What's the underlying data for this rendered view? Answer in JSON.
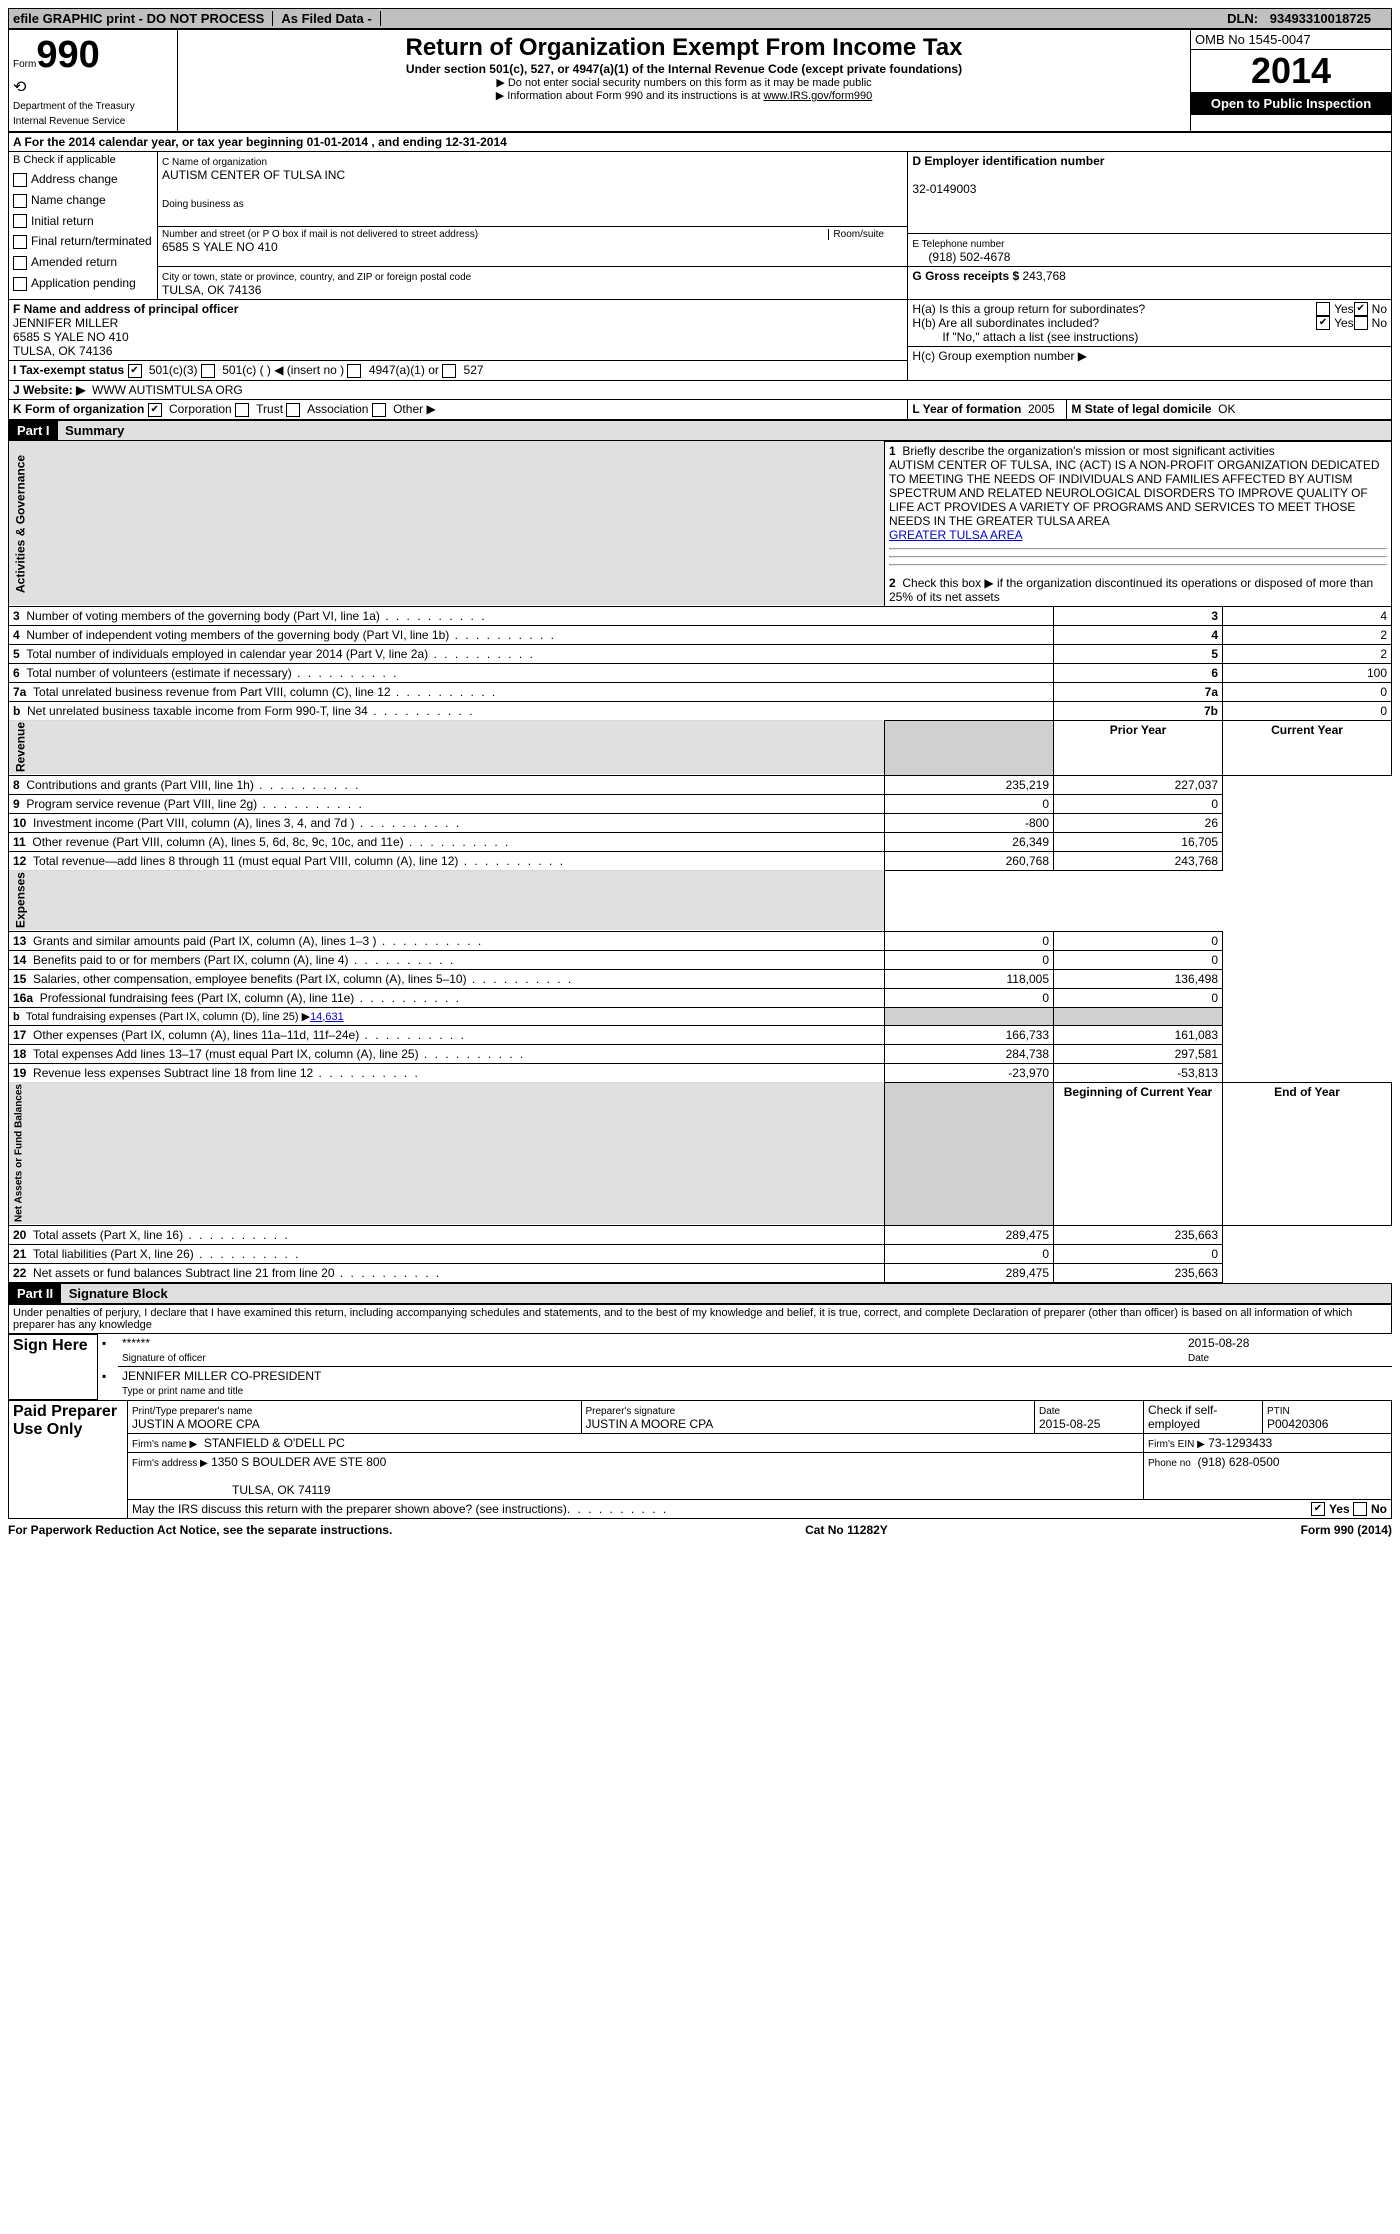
{
  "top_bar": {
    "efile": "efile GRAPHIC print - DO NOT PROCESS",
    "as_filed": "As Filed Data -",
    "dln_label": "DLN:",
    "dln": "93493310018725"
  },
  "header": {
    "form_label": "Form",
    "form_number": "990",
    "dept": "Department of the Treasury",
    "irs": "Internal Revenue Service",
    "title": "Return of Organization Exempt From Income Tax",
    "subtitle": "Under section 501(c), 527, or 4947(a)(1) of the Internal Revenue Code (except private foundations)",
    "note1": "▶ Do not enter social security numbers on this form as it may be made public",
    "note2": "▶ Information about Form 990 and its instructions is at ",
    "note2_link": "www.IRS.gov/form990",
    "omb": "OMB No 1545-0047",
    "year": "2014",
    "inspection": "Open to Public Inspection"
  },
  "section_a": {
    "a_label": "A  For the 2014 calendar year, or tax year beginning ",
    "begin": "01-01-2014",
    "mid": "  , and ending ",
    "end": "12-31-2014",
    "b_label": "B  Check if applicable",
    "b_items": [
      "Address change",
      "Name change",
      "Initial return",
      "Final return/terminated",
      "Amended return",
      "Application pending"
    ],
    "c_name_label": "C Name of organization",
    "c_name": "AUTISM CENTER OF TULSA INC",
    "dba_label": "Doing business as",
    "street_label": "Number and street (or P O  box if mail is not delivered to street address)",
    "room_label": "Room/suite",
    "street": "6585 S YALE NO 410",
    "city_label": "City or town, state or province, country, and ZIP or foreign postal code",
    "city": "TULSA, OK  74136",
    "d_label": "D Employer identification number",
    "d_ein": "32-0149003",
    "e_label": "E Telephone number",
    "e_phone": "(918) 502-4678",
    "g_label": "G Gross receipts $",
    "g_val": "243,768",
    "f_label": "F  Name and address of principal officer",
    "f_name": "JENNIFER MILLER",
    "f_street": "6585 S YALE NO 410",
    "f_city": "TULSA, OK  74136",
    "ha_label": "H(a)  Is this a group return for subordinates?",
    "hb_label": "H(b)  Are all subordinates included?",
    "hb_note": "If \"No,\" attach a list  (see instructions)",
    "hc_label": "H(c)   Group exemption number ▶",
    "yes": "Yes",
    "no": "No"
  },
  "i": {
    "label": "I   Tax-exempt status",
    "opt1": "501(c)(3)",
    "opt2": "501(c) (   ) ◀ (insert no )",
    "opt3": "4947(a)(1) or",
    "opt4": "527"
  },
  "j": {
    "label": "J   Website: ▶",
    "val": "WWW AUTISMTULSA ORG"
  },
  "k": {
    "label": "K Form of organization",
    "opts": [
      "Corporation",
      "Trust",
      "Association",
      "Other ▶"
    ],
    "l_label": "L Year of formation",
    "l_val": "2005",
    "m_label": "M State of legal domicile",
    "m_val": "OK"
  },
  "part1": {
    "header": "Part I",
    "title": "Summary",
    "q1": "Briefly describe the organization's mission or most significant activities",
    "q1_text": "AUTISM CENTER OF TULSA, INC  (ACT) IS A NON-PROFIT ORGANIZATION DEDICATED TO MEETING THE NEEDS OF INDIVIDUALS AND FAMILIES AFFECTED BY AUTISM SPECTRUM AND RELATED NEUROLOGICAL DISORDERS TO IMPROVE QUALITY OF LIFE  ACT PROVIDES A VARIETY OF PROGRAMS AND SERVICES TO MEET THOSE NEEDS IN THE GREATER TULSA AREA",
    "q2": "Check this box ▶      if the organization discontinued its operations or disposed of more than 25% of its net assets",
    "rows_ag": [
      {
        "n": "3",
        "t": "Number of voting members of the governing body (Part VI, line 1a)",
        "b": "3",
        "v": "4"
      },
      {
        "n": "4",
        "t": "Number of independent voting members of the governing body (Part VI, line 1b)",
        "b": "4",
        "v": "2"
      },
      {
        "n": "5",
        "t": "Total number of individuals employed in calendar year 2014 (Part V, line 2a)",
        "b": "5",
        "v": "2"
      },
      {
        "n": "6",
        "t": "Total number of volunteers (estimate if necessary)",
        "b": "6",
        "v": "100"
      },
      {
        "n": "7a",
        "t": "Total unrelated business revenue from Part VIII, column (C), line 12",
        "b": "7a",
        "v": "0"
      },
      {
        "n": "b",
        "t": "Net unrelated business taxable income from Form 990-T, line 34",
        "b": "7b",
        "v": "0"
      }
    ],
    "prior_year": "Prior Year",
    "current_year": "Current Year",
    "rows_rev": [
      {
        "n": "8",
        "t": "Contributions and grants (Part VIII, line 1h)",
        "p": "235,219",
        "c": "227,037"
      },
      {
        "n": "9",
        "t": "Program service revenue (Part VIII, line 2g)",
        "p": "0",
        "c": "0"
      },
      {
        "n": "10",
        "t": "Investment income (Part VIII, column (A), lines 3, 4, and 7d )",
        "p": "-800",
        "c": "26"
      },
      {
        "n": "11",
        "t": "Other revenue (Part VIII, column (A), lines 5, 6d, 8c, 9c, 10c, and 11e)",
        "p": "26,349",
        "c": "16,705"
      },
      {
        "n": "12",
        "t": "Total revenue—add lines 8 through 11 (must equal Part VIII, column (A), line 12)",
        "p": "260,768",
        "c": "243,768"
      }
    ],
    "rows_exp": [
      {
        "n": "13",
        "t": "Grants and similar amounts paid (Part IX, column (A), lines 1–3 )",
        "p": "0",
        "c": "0"
      },
      {
        "n": "14",
        "t": "Benefits paid to or for members (Part IX, column (A), line 4)",
        "p": "0",
        "c": "0"
      },
      {
        "n": "15",
        "t": "Salaries, other compensation, employee benefits (Part IX, column (A), lines 5–10)",
        "p": "118,005",
        "c": "136,498"
      },
      {
        "n": "16a",
        "t": "Professional fundraising fees (Part IX, column (A), line 11e)",
        "p": "0",
        "c": "0"
      }
    ],
    "row_16b": {
      "n": "b",
      "t": "Total fundraising expenses (Part IX, column (D), line 25) ▶",
      "v": "14,631"
    },
    "rows_exp2": [
      {
        "n": "17",
        "t": "Other expenses (Part IX, column (A), lines 11a–11d, 11f–24e)",
        "p": "166,733",
        "c": "161,083"
      },
      {
        "n": "18",
        "t": "Total expenses  Add lines 13–17 (must equal Part IX, column (A), line 25)",
        "p": "284,738",
        "c": "297,581"
      },
      {
        "n": "19",
        "t": "Revenue less expenses  Subtract line 18 from line 12",
        "p": "-23,970",
        "c": "-53,813"
      }
    ],
    "begin_year": "Beginning of Current Year",
    "end_year": "End of Year",
    "rows_na": [
      {
        "n": "20",
        "t": "Total assets (Part X, line 16)",
        "p": "289,475",
        "c": "235,663"
      },
      {
        "n": "21",
        "t": "Total liabilities (Part X, line 26)",
        "p": "0",
        "c": "0"
      },
      {
        "n": "22",
        "t": "Net assets or fund balances  Subtract line 21 from line 20",
        "p": "289,475",
        "c": "235,663"
      }
    ],
    "vlabels": {
      "ag": "Activities & Governance",
      "rev": "Revenue",
      "exp": "Expenses",
      "na": "Net Assets or Fund Balances"
    }
  },
  "part2": {
    "header": "Part II",
    "title": "Signature Block",
    "declaration": "Under penalties of perjury, I declare that I have examined this return, including accompanying schedules and statements, and to the best of my knowledge and belief, it is true, correct, and complete  Declaration of preparer (other than officer) is based on all information of which preparer has any knowledge",
    "sign_here": "Sign Here",
    "stars": "******",
    "sig_officer": "Signature of officer",
    "sig_date": "2015-08-28",
    "date_label": "Date",
    "officer_name": "JENNIFER MILLER CO-PRESIDENT",
    "type_name": "Type or print name and title",
    "paid": "Paid Preparer Use Only",
    "prep_name_label": "Print/Type preparer's name",
    "prep_name": "JUSTIN A MOORE CPA",
    "prep_sig_label": "Preparer's signature",
    "prep_sig": "JUSTIN A MOORE CPA",
    "prep_date_label": "Date",
    "prep_date": "2015-08-25",
    "check_if": "Check       if self-employed",
    "ptin_label": "PTIN",
    "ptin": "P00420306",
    "firm_name_label": "Firm's name    ▶",
    "firm_name": "STANFIELD & O'DELL PC",
    "firm_ein_label": "Firm's EIN ▶",
    "firm_ein": "73-1293433",
    "firm_addr_label": "Firm's address ▶",
    "firm_addr": "1350 S BOULDER AVE STE 800",
    "firm_city": "TULSA, OK  74119",
    "phone_label": "Phone no",
    "phone": "(918) 628-0500",
    "discuss": "May the IRS discuss this return with the preparer shown above? (see instructions)"
  },
  "footer": {
    "paperwork": "For Paperwork Reduction Act Notice, see the separate instructions.",
    "cat": "Cat No  11282Y",
    "form": "Form 990 (2014)"
  }
}
